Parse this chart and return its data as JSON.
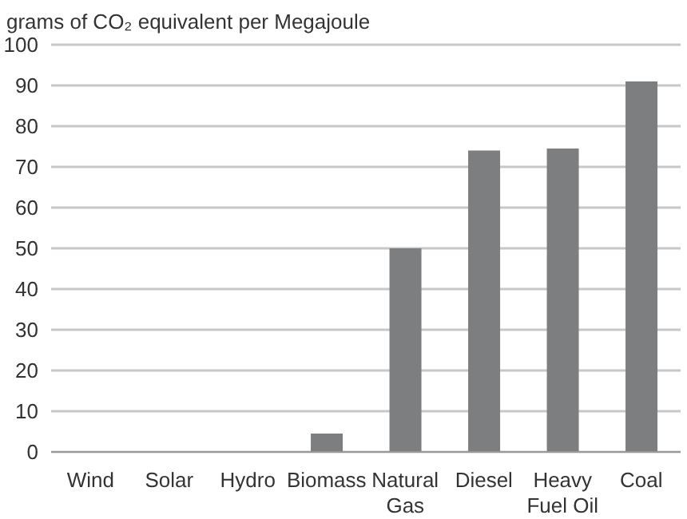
{
  "chart_data": {
    "type": "bar",
    "ylabel": "grams of CO₂ equivalent per Megajoule",
    "categories": [
      "Wind",
      "Solar",
      "Hydro",
      "Biomass",
      "Natural Gas",
      "Diesel",
      "Heavy Fuel Oil",
      "Coal"
    ],
    "values": [
      0,
      0,
      0,
      4.5,
      50,
      74,
      74.5,
      91
    ],
    "color": "#7d7e80",
    "ylim": [
      0,
      100
    ],
    "yticks": [
      0,
      10,
      20,
      30,
      40,
      50,
      60,
      70,
      80,
      90,
      100
    ],
    "grid": "y",
    "legend": false
  }
}
